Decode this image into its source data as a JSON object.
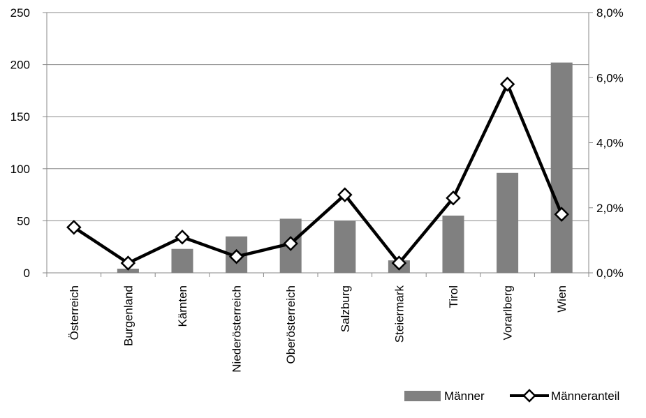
{
  "chart_data": {
    "type": "bar+line",
    "categories": [
      "Österreich",
      "Burgenland",
      "Kärnten",
      "Niederösterreich",
      "Oberösterreich",
      "Salzburg",
      "Steiermark",
      "Tirol",
      "Vorarlberg",
      "Wien"
    ],
    "series": [
      {
        "name": "Männer",
        "type": "bar",
        "axis": "left",
        "color": "#808080",
        "values": [
          0,
          4,
          23,
          35,
          52,
          50,
          12,
          55,
          96,
          202
        ]
      },
      {
        "name": "Männeranteil",
        "type": "line",
        "axis": "right",
        "color": "#000000",
        "marker": "diamond",
        "values": [
          0.014,
          0.003,
          0.011,
          0.005,
          0.009,
          0.024,
          0.003,
          0.023,
          0.058,
          0.018
        ]
      }
    ],
    "left_axis": {
      "min": 0,
      "max": 250,
      "ticks": [
        "0",
        "50",
        "100",
        "150",
        "200",
        "250"
      ]
    },
    "right_axis": {
      "min": 0,
      "max": 0.08,
      "ticks": [
        "0,0%",
        "2,0%",
        "4,0%",
        "6,0%",
        "8,0%"
      ]
    },
    "grid": true,
    "legend_position": "bottom-right",
    "legend": [
      "Männer",
      "Männeranteil"
    ]
  }
}
